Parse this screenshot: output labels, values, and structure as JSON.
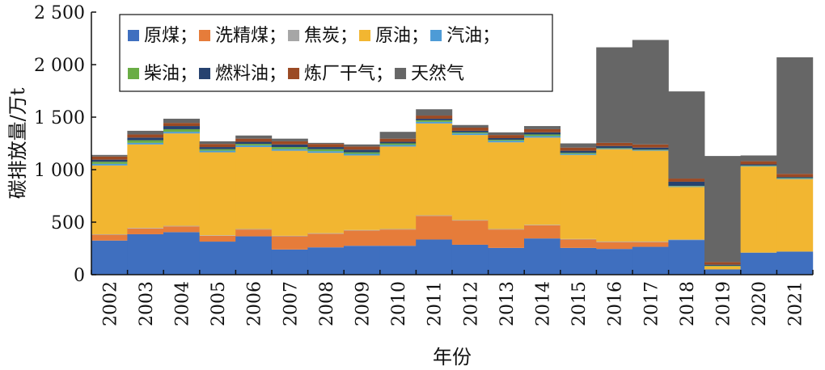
{
  "chart_data": {
    "type": "bar",
    "stacked": true,
    "xlabel": "年份",
    "ylabel": "碳排放量/万t",
    "ylim": [
      0,
      2500
    ],
    "yticks": [
      0,
      500,
      1000,
      1500,
      2000,
      2500
    ],
    "ytick_labels": [
      "0",
      "500",
      "1 000",
      "1 500",
      "2 000",
      "2 500"
    ],
    "legend_position": "top-left",
    "categories": [
      "2002",
      "2003",
      "2004",
      "2005",
      "2006",
      "2007",
      "2008",
      "2009",
      "2010",
      "2011",
      "2012",
      "2013",
      "2014",
      "2015",
      "2016",
      "2017",
      "2018",
      "2019",
      "2020",
      "2021"
    ],
    "series": [
      {
        "name": "原煤",
        "legend_label": "原煤；",
        "color": "#3f6fbf",
        "values": [
          325,
          385,
          405,
          315,
          365,
          240,
          260,
          275,
          275,
          335,
          285,
          255,
          345,
          255,
          245,
          265,
          330,
          50,
          210,
          220
        ]
      },
      {
        "name": "洗精煤",
        "legend_label": "洗精煤；",
        "color": "#e67c3a",
        "values": [
          55,
          55,
          55,
          55,
          65,
          125,
          130,
          145,
          155,
          225,
          230,
          175,
          125,
          80,
          65,
          45,
          0,
          0,
          0,
          0
        ]
      },
      {
        "name": "焦炭",
        "legend_label": "焦炭；",
        "color": "#a6a6a6",
        "values": [
          5,
          5,
          5,
          5,
          5,
          5,
          5,
          5,
          5,
          5,
          5,
          5,
          5,
          5,
          5,
          5,
          5,
          0,
          0,
          0
        ]
      },
      {
        "name": "原油",
        "legend_label": "原油；",
        "color": "#f2b631",
        "values": [
          655,
          795,
          880,
          790,
          780,
          810,
          765,
          710,
          785,
          875,
          810,
          825,
          830,
          800,
          880,
          865,
          500,
          30,
          820,
          690
        ]
      },
      {
        "name": "汽油",
        "legend_label": "汽油；",
        "color": "#4d9bd6",
        "values": [
          15,
          15,
          15,
          15,
          15,
          15,
          15,
          15,
          15,
          15,
          15,
          15,
          15,
          10,
          5,
          5,
          5,
          0,
          5,
          5
        ]
      },
      {
        "name": "柴油",
        "legend_label": "柴油；",
        "color": "#6aad45",
        "values": [
          20,
          25,
          25,
          15,
          15,
          20,
          20,
          15,
          15,
          15,
          10,
          10,
          15,
          10,
          5,
          5,
          5,
          5,
          5,
          5
        ]
      },
      {
        "name": "燃料油",
        "legend_label": "燃料油；",
        "color": "#26426f",
        "values": [
          20,
          25,
          30,
          20,
          20,
          25,
          20,
          25,
          15,
          15,
          15,
          15,
          20,
          20,
          20,
          20,
          40,
          10,
          10,
          10
        ]
      },
      {
        "name": "炼厂干气",
        "legend_label": "炼厂干气；",
        "color": "#9b4a24",
        "values": [
          30,
          30,
          30,
          30,
          30,
          30,
          30,
          30,
          30,
          30,
          30,
          30,
          30,
          30,
          30,
          30,
          30,
          25,
          30,
          30
        ]
      },
      {
        "name": "天然气",
        "legend_label": "天然气",
        "color": "#666666",
        "values": [
          15,
          35,
          40,
          25,
          30,
          25,
          10,
          20,
          65,
          60,
          25,
          25,
          30,
          40,
          910,
          995,
          830,
          1010,
          55,
          1110
        ]
      }
    ]
  }
}
